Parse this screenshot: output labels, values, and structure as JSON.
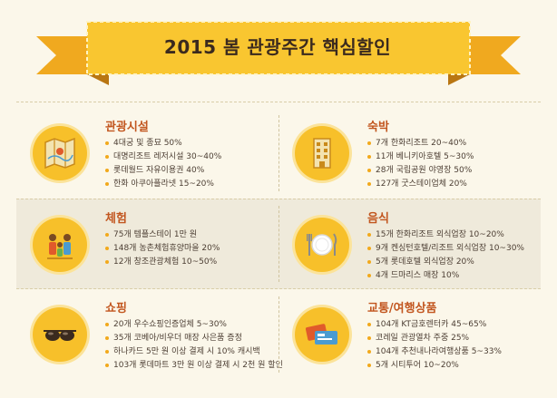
{
  "banner": {
    "title": "2015 봄 관광주간 핵심할인"
  },
  "sections": [
    {
      "title": "관광시설",
      "icon": "map-icon",
      "items": [
        "4대궁 및 종묘 50%",
        "대명리조트 레저시설 30~40%",
        "롯데월드 자유이용권 40%",
        "한화 아쿠아플라넷 15~20%"
      ]
    },
    {
      "title": "숙박",
      "icon": "hotel-icon",
      "items": [
        "7개 한화리조트 20~40%",
        "11개 베니키아호텔 5~30%",
        "28개 국립공원 야영장 50%",
        "127개 굿스테이업체 20%"
      ]
    },
    {
      "title": "체험",
      "icon": "family-icon",
      "items": [
        "75개 템플스테이 1만 원",
        "148개 농촌체험휴양마을 20%",
        "12개 창조관광체험 10~50%"
      ]
    },
    {
      "title": "음식",
      "icon": "plate-icon",
      "items": [
        "15개 한화리조트 외식업장 10~20%",
        "9개 켄싱턴호텔/리조트 외식업장 10~30%",
        "5개 롯데호텔 외식업장 20%",
        "4개 드마리스 매장 10%"
      ]
    },
    {
      "title": "쇼핑",
      "icon": "sunglasses-icon",
      "items": [
        "20개 우수쇼핑인증업체 5~30%",
        "35개 코베아/비우더 매장 사은품 증정",
        "하나카드 5만 원 이상 결제 시 10% 캐시백",
        "103개 롯데마트 3만 원 이상 결제 시 2천 원 할인"
      ]
    },
    {
      "title": "교통/여행상품",
      "icon": "ticket-icon",
      "items": [
        "104개 KT금호렌터카 45~65%",
        "코레일 관광열차 주중 25%",
        "104개 추천내나라여행상품 5~33%",
        "5개 시티투어 10~20%"
      ]
    }
  ],
  "colors": {
    "accent": "#f7c02a",
    "title": "#c2561f",
    "background": "#fbf7ea"
  }
}
